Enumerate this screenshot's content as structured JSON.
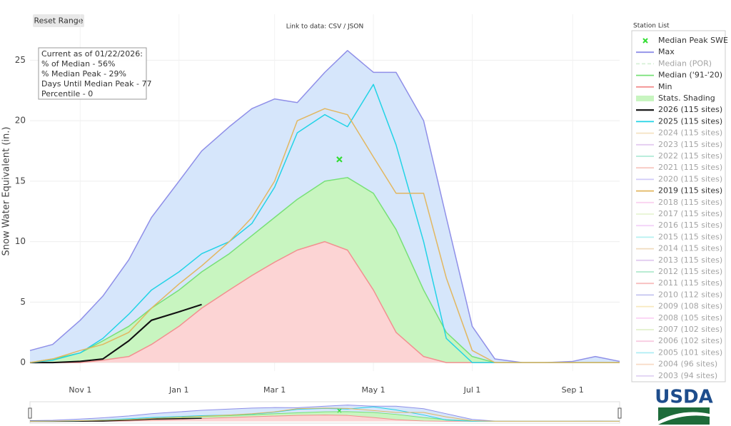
{
  "chart_data": {
    "type": "line",
    "button": "Reset Range",
    "link_text": "Link to data: CSV / JSON",
    "legend_title": "Station List",
    "ylabel": "Snow Water Equivalent (in.)",
    "logo": "USDA",
    "annotation": [
      "Current as of 01/22/2026:",
      "% of Median - 56%",
      "% Median Peak - 29%",
      "Days Until Median Peak - 77",
      "Percentile - 0"
    ],
    "x": [
      "Oct 1",
      "Oct 15",
      "Nov 1",
      "Nov 15",
      "Dec 1",
      "Dec 15",
      "Jan 1",
      "Jan 15",
      "Feb 1",
      "Feb 15",
      "Mar 1",
      "Mar 15",
      "Apr 1",
      "Apr 15",
      "May 1",
      "May 15",
      "Jun 1",
      "Jun 15",
      "Jul 1",
      "Jul 15",
      "Aug 1",
      "Aug 15",
      "Sep 1",
      "Sep 15",
      "Sep 30"
    ],
    "xlim": [
      "Oct 1",
      "Sep 30"
    ],
    "xticks": [
      "Nov 1",
      "Jan 1",
      "Mar 1",
      "May 1",
      "Jul 1",
      "Sep 1"
    ],
    "ylim": [
      -0.7,
      28.8
    ],
    "yticks": [
      0,
      5,
      10,
      15,
      20,
      25
    ],
    "grid": true,
    "series": [
      {
        "name": "Median Peak SWE",
        "color": "#33dd33",
        "kind": "marker",
        "visible": true,
        "x": [
          "Apr 10"
        ],
        "values": [
          16.8
        ]
      },
      {
        "name": "Max",
        "color": "#8f8fe8",
        "kind": "line",
        "visible": true,
        "values": [
          1,
          1.5,
          3.5,
          5.5,
          8.5,
          12,
          15,
          17.5,
          19.5,
          21,
          21.8,
          21.5,
          24,
          25.8,
          24,
          24,
          20,
          12,
          3,
          0.3,
          0,
          0,
          0.1,
          0.5,
          0.1
        ]
      },
      {
        "name": "Median (POR)",
        "color": "#a8e0a8",
        "kind": "dash",
        "visible": false
      },
      {
        "name": "Median ('91-'20)",
        "color": "#77e077",
        "kind": "line",
        "visible": true,
        "values": [
          0,
          0.3,
          0.8,
          1.8,
          3,
          4.5,
          6,
          7.5,
          9,
          10.5,
          12,
          13.5,
          15,
          15.3,
          14,
          11,
          6,
          2.5,
          0.5,
          0,
          0,
          0,
          0,
          0,
          0
        ]
      },
      {
        "name": "Min",
        "color": "#f29090",
        "kind": "line",
        "visible": true,
        "values": [
          0,
          0,
          0,
          0.2,
          0.5,
          1.5,
          3,
          4.5,
          6,
          7.2,
          8.3,
          9.3,
          10,
          9.3,
          6,
          2.5,
          0.5,
          0,
          0,
          0,
          0,
          0,
          0,
          0,
          0
        ]
      },
      {
        "name": "Stats. Shading",
        "color": "#c8f5c0",
        "kind": "shade",
        "visible": true
      },
      {
        "name": "2026 (115 sites)",
        "color": "#111111",
        "kind": "line",
        "visible": true,
        "values": [
          0,
          0,
          0.1,
          0.3,
          1.8,
          3.5,
          4.2,
          4.8,
          null,
          null,
          null,
          null,
          null,
          null,
          null,
          null,
          null,
          null,
          null,
          null,
          null,
          null,
          null,
          null,
          null
        ]
      },
      {
        "name": "2025 (115 sites)",
        "color": "#22d3e6",
        "kind": "line",
        "visible": true,
        "values": [
          0,
          0.2,
          0.8,
          2,
          4,
          6,
          7.5,
          9,
          10,
          11.5,
          14.5,
          19,
          20.5,
          19.5,
          23,
          18,
          10,
          2,
          0,
          0,
          0,
          0,
          0,
          0,
          0
        ]
      },
      {
        "name": "2024 (115 sites)",
        "color": "#e8c07a",
        "kind": "line",
        "visible": false
      },
      {
        "name": "2023 (115 sites)",
        "color": "#c58fe0",
        "kind": "line",
        "visible": false
      },
      {
        "name": "2022 (115 sites)",
        "color": "#4fd1a5",
        "kind": "line",
        "visible": false
      },
      {
        "name": "2021 (115 sites)",
        "color": "#f08a7a",
        "kind": "line",
        "visible": false
      },
      {
        "name": "2020 (115 sites)",
        "color": "#9a8ef0",
        "kind": "line",
        "visible": false
      },
      {
        "name": "2019 (115 sites)",
        "color": "#e2b760",
        "kind": "line",
        "visible": true,
        "values": [
          0,
          0.3,
          1,
          1.5,
          2.5,
          4.5,
          6.5,
          8,
          10,
          12,
          15,
          20,
          21,
          20.5,
          17,
          14,
          14,
          7,
          1,
          0,
          0,
          0,
          0,
          0,
          0
        ]
      },
      {
        "name": "2018 (115 sites)",
        "color": "#f5a0e0",
        "kind": "line",
        "visible": false
      },
      {
        "name": "2017 (115 sites)",
        "color": "#c8e8a0",
        "kind": "line",
        "visible": false
      },
      {
        "name": "2016 (115 sites)",
        "color": "#e8a0f0",
        "kind": "line",
        "visible": false
      },
      {
        "name": "2015 (115 sites)",
        "color": "#60e0e0",
        "kind": "line",
        "visible": false
      },
      {
        "name": "2014 (115 sites)",
        "color": "#e0b070",
        "kind": "line",
        "visible": false
      },
      {
        "name": "2013 (115 sites)",
        "color": "#c090e0",
        "kind": "line",
        "visible": false
      },
      {
        "name": "2012 (115 sites)",
        "color": "#50d090",
        "kind": "line",
        "visible": false
      },
      {
        "name": "2011 (115 sites)",
        "color": "#f07070",
        "kind": "line",
        "visible": false
      },
      {
        "name": "2010 (112 sites)",
        "color": "#8080e0",
        "kind": "line",
        "visible": false
      },
      {
        "name": "2009 (108 sites)",
        "color": "#f0d070",
        "kind": "line",
        "visible": false
      },
      {
        "name": "2008 (105 sites)",
        "color": "#f8a0e8",
        "kind": "line",
        "visible": false
      },
      {
        "name": "2007 (102 sites)",
        "color": "#c0e090",
        "kind": "line",
        "visible": false
      },
      {
        "name": "2006 (102 sites)",
        "color": "#f090c0",
        "kind": "line",
        "visible": false
      },
      {
        "name": "2005 (101 sites)",
        "color": "#50d8e8",
        "kind": "line",
        "visible": false
      },
      {
        "name": "2004 (96 sites)",
        "color": "#f0b080",
        "kind": "line",
        "visible": false
      },
      {
        "name": "2003 (94 sites)",
        "color": "#c0a0e8",
        "kind": "line",
        "visible": false
      }
    ]
  }
}
